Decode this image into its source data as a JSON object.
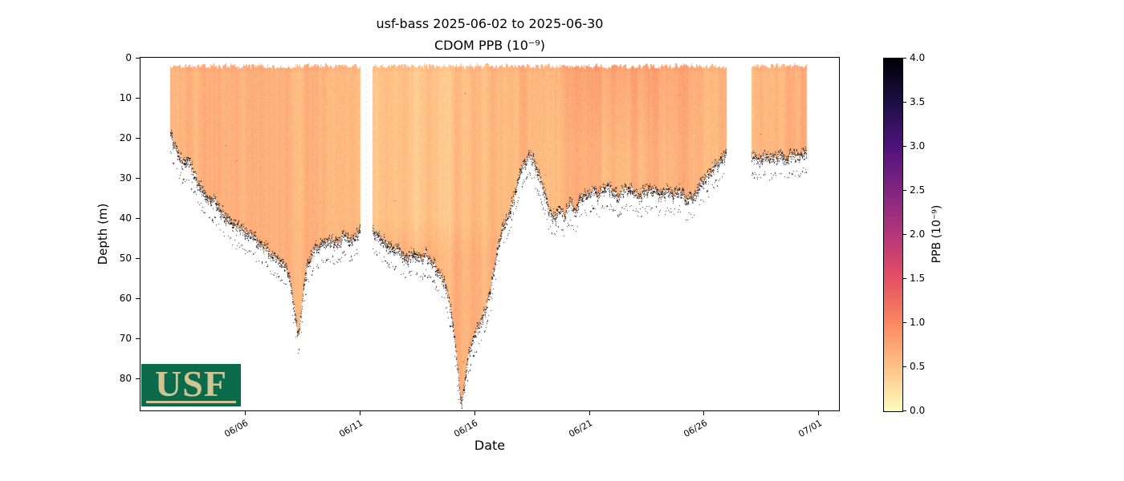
{
  "title": {
    "line1": "usf-bass 2025-06-02 to 2025-06-30",
    "line2": "CDOM PPB (10⁻⁹)"
  },
  "axes": {
    "xlabel": "Date",
    "ylabel": "Depth (m)",
    "x_ticks": [
      {
        "day": 4,
        "label": "06/06"
      },
      {
        "day": 9,
        "label": "06/11"
      },
      {
        "day": 14,
        "label": "06/16"
      },
      {
        "day": 19,
        "label": "06/21"
      },
      {
        "day": 24,
        "label": "06/26"
      },
      {
        "day": 29,
        "label": "07/01"
      }
    ],
    "y_ticks": [
      {
        "depth": 0,
        "label": "0"
      },
      {
        "depth": 10,
        "label": "10"
      },
      {
        "depth": 20,
        "label": "20"
      },
      {
        "depth": 30,
        "label": "30"
      },
      {
        "depth": 40,
        "label": "40"
      },
      {
        "depth": 50,
        "label": "50"
      },
      {
        "depth": 60,
        "label": "60"
      },
      {
        "depth": 70,
        "label": "70"
      },
      {
        "depth": 80,
        "label": "80"
      }
    ]
  },
  "colorbar": {
    "label": "PPB (10⁻⁹)",
    "vmin": 0,
    "vmax": 4,
    "ticks": [
      {
        "value": 0.0,
        "label": "0.0"
      },
      {
        "value": 0.5,
        "label": "0.5"
      },
      {
        "value": 1.0,
        "label": "1.0"
      },
      {
        "value": 1.5,
        "label": "1.5"
      },
      {
        "value": 2.0,
        "label": "2.0"
      },
      {
        "value": 2.5,
        "label": "2.5"
      },
      {
        "value": 3.0,
        "label": "3.0"
      },
      {
        "value": 3.5,
        "label": "3.5"
      },
      {
        "value": 4.0,
        "label": "4.0"
      }
    ],
    "colormap": "magma_r",
    "stops": [
      {
        "value": 0.0,
        "rgb": [
          252,
          253,
          191
        ]
      },
      {
        "value": 0.5,
        "rgb": [
          254,
          194,
          135
        ]
      },
      {
        "value": 1.0,
        "rgb": [
          251,
          135,
          97
        ]
      },
      {
        "value": 1.5,
        "rgb": [
          229,
          80,
          100
        ]
      },
      {
        "value": 2.0,
        "rgb": [
          181,
          54,
          122
        ]
      },
      {
        "value": 2.5,
        "rgb": [
          129,
          37,
          129
        ]
      },
      {
        "value": 3.0,
        "rgb": [
          79,
          18,
          123
        ]
      },
      {
        "value": 3.5,
        "rgb": [
          28,
          16,
          68
        ]
      },
      {
        "value": 4.0,
        "rgb": [
          0,
          0,
          4
        ]
      }
    ]
  },
  "logo": {
    "text": "USF",
    "bg": "#0a6a4a",
    "fg": "#CFC493"
  },
  "chart_data": {
    "type": "heatmap",
    "title": "usf-bass 2025-06-02 to 2025-06-30",
    "subtitle": "CDOM PPB (10⁻⁹)",
    "variable": "CDOM PPB (10⁻⁹)",
    "xlabel": "Date",
    "ylabel": "Depth (m)",
    "x_day0_date": "2025-06-02",
    "x_range_days": [
      -0.55,
      29.9
    ],
    "depth_range_m": [
      0,
      88
    ],
    "value_range_ppb": [
      0,
      4
    ],
    "typical_value_ppb": 0.62,
    "surface_top_depth_m": 2.1,
    "data_extent_days": [
      0.75,
      28.5
    ],
    "gaps_days": [
      [
        9.05,
        9.55
      ],
      [
        25.0,
        26.1
      ]
    ],
    "dotted_profile_day": 9.3,
    "light_band": {
      "center_day": 11.3,
      "width_days": 3.4,
      "max_depth_m": 45,
      "value_delta": -0.15
    },
    "dark_band": {
      "center_day": 20.5,
      "width_days": 3.0,
      "max_depth_m": 24,
      "value_delta": 0.16
    },
    "seafloor_profile": [
      [
        0.75,
        19
      ],
      [
        0.9,
        21
      ],
      [
        1.1,
        24
      ],
      [
        1.35,
        26
      ],
      [
        1.5,
        25
      ],
      [
        1.7,
        27
      ],
      [
        1.9,
        30
      ],
      [
        2.1,
        32
      ],
      [
        2.35,
        34
      ],
      [
        2.6,
        35
      ],
      [
        2.85,
        37
      ],
      [
        3.1,
        39
      ],
      [
        3.4,
        41
      ],
      [
        3.7,
        42
      ],
      [
        4.0,
        43
      ],
      [
        4.3,
        44
      ],
      [
        4.6,
        46
      ],
      [
        4.9,
        47
      ],
      [
        5.2,
        49
      ],
      [
        5.45,
        50
      ],
      [
        5.7,
        51
      ],
      [
        5.9,
        54
      ],
      [
        6.05,
        58
      ],
      [
        6.2,
        64
      ],
      [
        6.32,
        70
      ],
      [
        6.45,
        64
      ],
      [
        6.6,
        56
      ],
      [
        6.75,
        51
      ],
      [
        6.9,
        49
      ],
      [
        7.1,
        47
      ],
      [
        7.4,
        46
      ],
      [
        7.7,
        45
      ],
      [
        8.0,
        46
      ],
      [
        8.3,
        44
      ],
      [
        8.6,
        45
      ],
      [
        8.9,
        44
      ],
      [
        9.05,
        43
      ],
      [
        9.55,
        43
      ],
      [
        9.8,
        44
      ],
      [
        10.1,
        46
      ],
      [
        10.4,
        47
      ],
      [
        10.7,
        48
      ],
      [
        11.0,
        50
      ],
      [
        11.3,
        49
      ],
      [
        11.6,
        50
      ],
      [
        11.9,
        49
      ],
      [
        12.2,
        51
      ],
      [
        12.5,
        53
      ],
      [
        12.8,
        57
      ],
      [
        13.0,
        63
      ],
      [
        13.2,
        73
      ],
      [
        13.35,
        81
      ],
      [
        13.45,
        87
      ],
      [
        13.6,
        80
      ],
      [
        13.75,
        74
      ],
      [
        13.95,
        70
      ],
      [
        14.15,
        67
      ],
      [
        14.4,
        64
      ],
      [
        14.65,
        60
      ],
      [
        14.85,
        53
      ],
      [
        15.05,
        46
      ],
      [
        15.25,
        42
      ],
      [
        15.5,
        39
      ],
      [
        15.75,
        34
      ],
      [
        16.0,
        29
      ],
      [
        16.2,
        26
      ],
      [
        16.4,
        24
      ],
      [
        16.55,
        25
      ],
      [
        16.7,
        27
      ],
      [
        16.9,
        30
      ],
      [
        17.1,
        34
      ],
      [
        17.3,
        38
      ],
      [
        17.55,
        40
      ],
      [
        17.75,
        37
      ],
      [
        17.95,
        39
      ],
      [
        18.15,
        36
      ],
      [
        18.4,
        38
      ],
      [
        18.6,
        35
      ],
      [
        18.85,
        34
      ],
      [
        19.1,
        33
      ],
      [
        19.4,
        34
      ],
      [
        19.7,
        32
      ],
      [
        20.0,
        33
      ],
      [
        20.3,
        34
      ],
      [
        20.6,
        32
      ],
      [
        20.9,
        33
      ],
      [
        21.2,
        34
      ],
      [
        21.5,
        33
      ],
      [
        21.8,
        32
      ],
      [
        22.1,
        34
      ],
      [
        22.4,
        33
      ],
      [
        22.7,
        34
      ],
      [
        23.0,
        33
      ],
      [
        23.3,
        35
      ],
      [
        23.6,
        34
      ],
      [
        23.9,
        31
      ],
      [
        24.2,
        29
      ],
      [
        24.5,
        27
      ],
      [
        24.75,
        25
      ],
      [
        25.0,
        24
      ],
      [
        26.1,
        24
      ],
      [
        26.4,
        25
      ],
      [
        26.7,
        24
      ],
      [
        27.0,
        25
      ],
      [
        27.3,
        24
      ],
      [
        27.6,
        25
      ],
      [
        27.9,
        24
      ],
      [
        28.2,
        24
      ],
      [
        28.5,
        23
      ]
    ]
  }
}
